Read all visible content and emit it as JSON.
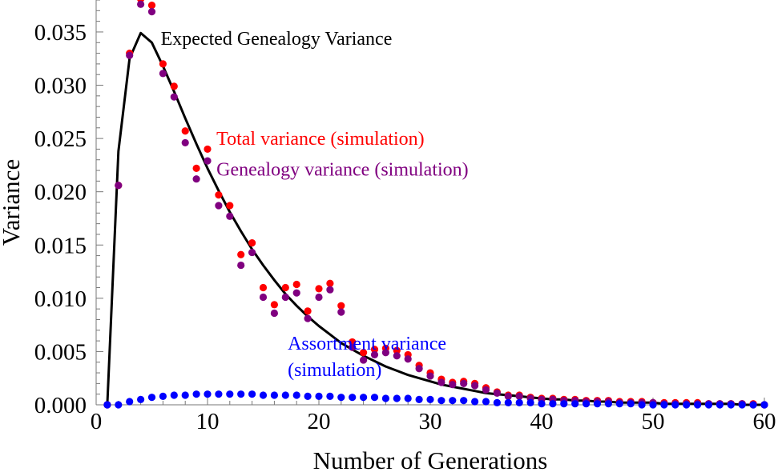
{
  "chart_data": {
    "type": "scatter",
    "title": "",
    "xlabel": "Number of Generations",
    "ylabel": "Variance",
    "xlim": [
      0,
      60
    ],
    "ylim": [
      0,
      0.038
    ],
    "xticks": [
      "0",
      "10",
      "20",
      "30",
      "40",
      "50",
      "60"
    ],
    "yticks": [
      "0.000",
      "0.005",
      "0.010",
      "0.015",
      "0.020",
      "0.025",
      "0.030",
      "0.035"
    ],
    "grid": false,
    "legend": "none",
    "annotations": [
      {
        "text": "Expected Genealogy Variance",
        "color": "#000000",
        "anchor": [
          5.8,
          0.0338
        ]
      },
      {
        "text": "Total variance (simulation)",
        "color": "#ff0000",
        "anchor": [
          10.8,
          0.0244
        ]
      },
      {
        "text": "Genealogy variance (simulation)",
        "color": "#800080",
        "anchor": [
          10.8,
          0.0215
        ]
      },
      {
        "text": "Assortment variance",
        "color": "#0000ff",
        "anchor": [
          17.2,
          0.0052
        ]
      },
      {
        "text": "(simulation)",
        "color": "#0000ff",
        "anchor": [
          17.2,
          0.0027
        ]
      }
    ],
    "series": [
      {
        "kind": "line",
        "color": "#000000",
        "x": [
          1,
          2,
          3,
          4,
          5,
          6,
          7,
          8,
          9,
          10,
          11,
          12,
          13,
          14,
          15,
          16,
          17,
          18,
          19,
          20,
          21,
          22,
          23,
          24,
          25,
          26,
          27,
          28,
          29,
          30,
          31,
          32,
          33,
          34,
          35,
          36,
          37,
          38,
          39,
          40,
          41,
          42,
          43,
          44,
          45,
          46,
          47,
          48,
          49,
          50,
          51,
          52,
          53,
          54,
          55,
          56,
          57,
          58,
          59,
          60
        ],
        "y": [
          0.0,
          0.0238,
          0.0325,
          0.0349,
          0.034,
          0.0318,
          0.0294,
          0.0269,
          0.0245,
          0.0222,
          0.0201,
          0.0181,
          0.0163,
          0.0146,
          0.0131,
          0.0117,
          0.0104,
          0.0093,
          0.0083,
          0.0074,
          0.0066,
          0.0058,
          0.0052,
          0.0046,
          0.0041,
          0.0036,
          0.0032,
          0.0028,
          0.0025,
          0.0022,
          0.0019,
          0.0017,
          0.0015,
          0.0013,
          0.0011,
          0.001,
          0.0009,
          0.0008,
          0.0007,
          0.0006,
          0.0005,
          0.0005,
          0.0004,
          0.0004,
          0.0003,
          0.0003,
          0.0002,
          0.0002,
          0.0002,
          0.0002,
          0.0001,
          0.0001,
          0.0001,
          0.0001,
          0.0001,
          0.0001,
          0.0001,
          0.0,
          0.0,
          0.0
        ]
      },
      {
        "kind": "points",
        "color": "#ff0000",
        "x": [
          1,
          2,
          3,
          4,
          5,
          6,
          7,
          8,
          9,
          10,
          11,
          12,
          13,
          14,
          15,
          16,
          17,
          18,
          19,
          20,
          21,
          22,
          23,
          24,
          25,
          26,
          27,
          28,
          29,
          30,
          31,
          32,
          33,
          34,
          35,
          36,
          37,
          38,
          39,
          40,
          41,
          42,
          43,
          44,
          45,
          46,
          47,
          48,
          49,
          50,
          51,
          52,
          53,
          54,
          55,
          56,
          57,
          58,
          59,
          60
        ],
        "y": [
          0.0,
          0.0206,
          0.033,
          0.0381,
          0.0375,
          0.032,
          0.0299,
          0.0257,
          0.0222,
          0.024,
          0.0197,
          0.0187,
          0.0141,
          0.0152,
          0.011,
          0.0094,
          0.011,
          0.0113,
          0.0088,
          0.0109,
          0.0114,
          0.0093,
          0.0059,
          0.0049,
          0.0052,
          0.0053,
          0.0051,
          0.0047,
          0.0037,
          0.003,
          0.0024,
          0.0021,
          0.0022,
          0.002,
          0.0016,
          0.0012,
          0.0009,
          0.0009,
          0.0007,
          0.0006,
          0.0006,
          0.0005,
          0.0005,
          0.0004,
          0.0004,
          0.0004,
          0.0003,
          0.0003,
          0.0003,
          0.0002,
          0.0002,
          0.0002,
          0.0002,
          0.0002,
          0.0001,
          0.0001,
          0.0001,
          0.0001,
          0.0001,
          0.0
        ]
      },
      {
        "kind": "points",
        "color": "#800080",
        "x": [
          1,
          2,
          3,
          4,
          5,
          6,
          7,
          8,
          9,
          10,
          11,
          12,
          13,
          14,
          15,
          16,
          17,
          18,
          19,
          20,
          21,
          22,
          23,
          24,
          25,
          26,
          27,
          28,
          29,
          30,
          31,
          32,
          33,
          34,
          35,
          36,
          37,
          38,
          39,
          40,
          41,
          42,
          43,
          44,
          45,
          46,
          47,
          48,
          49,
          50,
          51,
          52,
          53,
          54,
          55,
          56,
          57,
          58,
          59,
          60
        ],
        "y": [
          0.0,
          0.0206,
          0.0328,
          0.0376,
          0.0369,
          0.0311,
          0.0289,
          0.0246,
          0.0212,
          0.0229,
          0.0187,
          0.0177,
          0.0131,
          0.0143,
          0.0101,
          0.0086,
          0.0101,
          0.0105,
          0.0081,
          0.0101,
          0.0108,
          0.0087,
          0.0054,
          0.0042,
          0.0047,
          0.0049,
          0.0046,
          0.0043,
          0.0034,
          0.0027,
          0.0021,
          0.0019,
          0.002,
          0.0018,
          0.0014,
          0.0011,
          0.0008,
          0.0008,
          0.0006,
          0.0005,
          0.0005,
          0.0004,
          0.0004,
          0.0003,
          0.0003,
          0.0003,
          0.0002,
          0.0002,
          0.0002,
          0.0002,
          0.0001,
          0.0001,
          0.0001,
          0.0001,
          0.0001,
          0.0001,
          0.0001,
          0.0001,
          0.0,
          0.0
        ]
      },
      {
        "kind": "points",
        "color": "#0000ff",
        "x": [
          1,
          2,
          3,
          4,
          5,
          6,
          7,
          8,
          9,
          10,
          11,
          12,
          13,
          14,
          15,
          16,
          17,
          18,
          19,
          20,
          21,
          22,
          23,
          24,
          25,
          26,
          27,
          28,
          29,
          30,
          31,
          32,
          33,
          34,
          35,
          36,
          37,
          38,
          39,
          40,
          41,
          42,
          43,
          44,
          45,
          46,
          47,
          48,
          49,
          50,
          51,
          52,
          53,
          54,
          55,
          56,
          57,
          58,
          59,
          60
        ],
        "y": [
          0.0,
          0.0,
          0.0003,
          0.0005,
          0.0007,
          0.0008,
          0.0009,
          0.0009,
          0.001,
          0.001,
          0.001,
          0.001,
          0.001,
          0.001,
          0.0009,
          0.0009,
          0.0009,
          0.0009,
          0.0008,
          0.0008,
          0.0008,
          0.0007,
          0.0007,
          0.0007,
          0.0007,
          0.0006,
          0.0006,
          0.0006,
          0.0005,
          0.0005,
          0.0004,
          0.0004,
          0.0004,
          0.0003,
          0.0003,
          0.0002,
          0.0002,
          0.0002,
          0.0002,
          0.0001,
          0.0001,
          0.0001,
          0.0001,
          0.0001,
          0.0001,
          0.0001,
          0.0001,
          0.0001,
          0.0,
          0.0,
          0.0,
          0.0,
          0.0,
          0.0,
          0.0,
          0.0,
          0.0,
          0.0,
          0.0,
          0.0
        ]
      }
    ]
  }
}
